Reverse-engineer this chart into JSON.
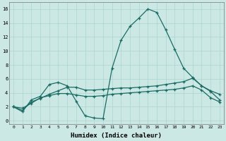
{
  "xlabel": "Humidex (Indice chaleur)",
  "xlim": [
    -0.5,
    23.5
  ],
  "ylim": [
    -0.5,
    17.0
  ],
  "bg_color": "#cce8e4",
  "grid_color": "#aad4cf",
  "line_color": "#1a6b63",
  "xticks": [
    0,
    1,
    2,
    3,
    4,
    5,
    6,
    7,
    8,
    9,
    10,
    11,
    12,
    13,
    14,
    15,
    16,
    17,
    18,
    19,
    20,
    21,
    22,
    23
  ],
  "yticks": [
    0,
    2,
    4,
    6,
    8,
    10,
    12,
    14,
    16
  ],
  "line1_y": [
    2.0,
    1.3,
    3.0,
    3.5,
    5.2,
    5.5,
    5.0,
    2.8,
    0.7,
    0.4,
    0.3,
    7.5,
    11.5,
    13.5,
    14.7,
    16.0,
    15.5,
    13.0,
    10.2,
    7.5,
    6.2,
    5.0,
    4.2,
    3.0
  ],
  "line2_y": [
    2.0,
    1.5,
    2.7,
    3.2,
    3.8,
    4.3,
    4.8,
    4.8,
    4.4,
    4.4,
    4.5,
    4.6,
    4.7,
    4.7,
    4.8,
    4.9,
    5.0,
    5.2,
    5.4,
    5.6,
    6.1,
    5.0,
    4.3,
    3.8
  ],
  "line3_y": [
    2.0,
    1.8,
    2.5,
    3.3,
    3.6,
    3.9,
    3.9,
    3.7,
    3.5,
    3.5,
    3.6,
    3.8,
    3.9,
    4.0,
    4.1,
    4.2,
    4.3,
    4.4,
    4.5,
    4.7,
    5.0,
    4.4,
    3.3,
    2.7
  ]
}
